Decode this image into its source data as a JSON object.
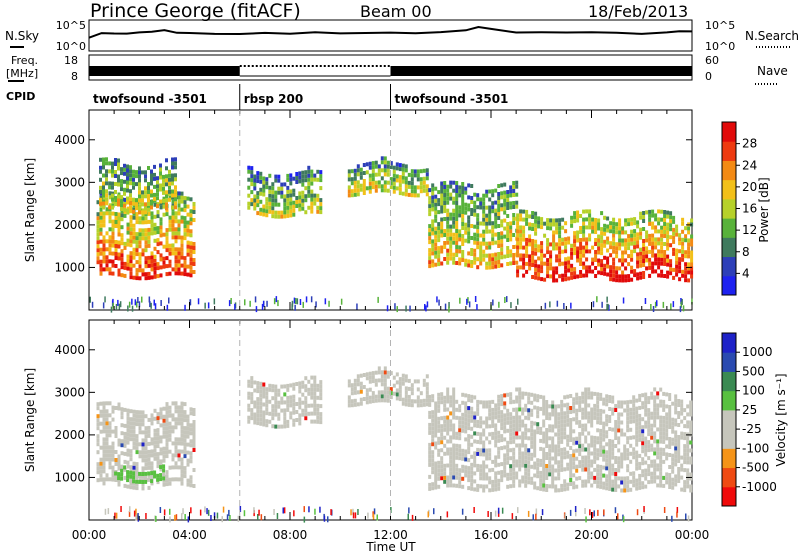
{
  "header": {
    "station": "Prince George (fitACF)",
    "beam": "Beam 00",
    "date": "18/Feb/2013"
  },
  "labels": {
    "nsky": "N.Sky",
    "nsearch": "N.Search",
    "freq": "Freq.",
    "freq_unit": "[MHz]",
    "nave": "Nave",
    "cpid": "CPID",
    "xlabel": "Time UT"
  },
  "colors": {
    "power_scale": [
      "#1e22f0",
      "#2d3fb8",
      "#3f7a5e",
      "#58b23a",
      "#b6d12a",
      "#f2c019",
      "#f38a14",
      "#ee3a10",
      "#e10a0a"
    ],
    "velocity_scale": [
      "#f00a0a",
      "#ef4a12",
      "#f59418",
      "#c6c6bc",
      "#c6c6bc",
      "#58c040",
      "#3a8a52",
      "#2a4ab0",
      "#1e22c8"
    ],
    "gridline": "#b4b4b4"
  },
  "chart_data": [
    {
      "type": "line",
      "name": "N.Sky / N.Search",
      "y_left_ticks": [
        "10^5",
        "10^0"
      ],
      "y_right_ticks": [
        "10^5",
        "10^0"
      ],
      "x_range_hours": [
        0,
        24
      ],
      "x_hours": [
        0,
        0.5,
        1,
        1.5,
        2,
        2.5,
        3,
        3.5,
        4,
        5,
        6,
        7,
        8,
        9,
        10,
        11,
        12,
        13,
        14,
        15,
        15.5,
        16,
        17,
        18,
        19,
        20,
        21,
        22,
        23,
        23.5,
        24
      ],
      "values": [
        0.42,
        0.55,
        0.56,
        0.58,
        0.6,
        0.62,
        0.64,
        0.6,
        0.58,
        0.56,
        0.55,
        0.56,
        0.56,
        0.57,
        0.56,
        0.55,
        0.56,
        0.58,
        0.62,
        0.68,
        0.74,
        0.7,
        0.6,
        0.58,
        0.57,
        0.58,
        0.6,
        0.56,
        0.58,
        0.62,
        0.64
      ],
      "dotted_legend": "N.Search"
    },
    {
      "type": "bar",
      "name": "Freq / Nave",
      "y_left_ticks": [
        "18",
        "8"
      ],
      "y_right_ticks": [
        "60",
        "0"
      ],
      "segments": [
        {
          "start_hour": 0,
          "end_hour": 6,
          "style": "solid"
        },
        {
          "start_hour": 6,
          "end_hour": 12,
          "style": "dotted"
        },
        {
          "start_hour": 12,
          "end_hour": 24,
          "style": "solid"
        }
      ],
      "dotted_legend": "Nave"
    },
    {
      "type": "table",
      "name": "CPID",
      "programs": [
        {
          "label": "twofsound -3501",
          "start_hour": 0
        },
        {
          "label": "rbsp 200",
          "start_hour": 6
        },
        {
          "label": "twofsound -3501",
          "start_hour": 12
        }
      ]
    },
    {
      "type": "heatmap",
      "name": "Power",
      "ylabel": "Slant Range [km]",
      "yticks": [
        1000,
        2000,
        3000,
        4000
      ],
      "ylim": [
        0,
        4700
      ],
      "colorbar_label": "Power [dB]",
      "colorbar_ticks": [
        4,
        8,
        12,
        16,
        20,
        24,
        28
      ],
      "colorbar_range": [
        0,
        32
      ],
      "x_range_hours": [
        0,
        24
      ],
      "echo_regions": [
        {
          "t0": 0.3,
          "t1": 4.2,
          "r_low": 850,
          "r_high": 2700,
          "level": 0.72
        },
        {
          "t0": 0.4,
          "t1": 3.5,
          "r_low": 2400,
          "r_high": 3500,
          "level": 0.5
        },
        {
          "t0": 6.3,
          "t1": 9.2,
          "r_low": 2300,
          "r_high": 3300,
          "level": 0.45
        },
        {
          "t0": 10.3,
          "t1": 13.5,
          "r_low": 2800,
          "r_high": 3500,
          "level": 0.5
        },
        {
          "t0": 13.5,
          "t1": 17.0,
          "r_low": 1100,
          "r_high": 3000,
          "level": 0.55
        },
        {
          "t0": 17.0,
          "t1": 24.0,
          "r_low": 800,
          "r_high": 2300,
          "level": 0.8
        }
      ]
    },
    {
      "type": "heatmap",
      "name": "Velocity",
      "ylabel": "Slant Range [km]",
      "yticks": [
        1000,
        2000,
        3000,
        4000
      ],
      "ylim": [
        0,
        4700
      ],
      "colorbar_label": "Velocity [m s⁻¹]",
      "colorbar_ticks": [
        1000,
        500,
        100,
        25,
        -25,
        -100,
        -500,
        -1000
      ],
      "x_range_hours": [
        0,
        24
      ],
      "xticks": [
        "00:00",
        "04:00",
        "08:00",
        "12:00",
        "16:00",
        "20:00",
        "00:00"
      ],
      "echo_regions": [
        {
          "t0": 0.3,
          "t1": 4.2,
          "r_low": 850,
          "r_high": 2700,
          "mean_velocity": 0
        },
        {
          "t0": 1.0,
          "t1": 3.0,
          "r_low": 1000,
          "r_high": 1300,
          "mean_velocity": 80
        },
        {
          "t0": 6.3,
          "t1": 9.2,
          "r_low": 2300,
          "r_high": 3300,
          "mean_velocity": 0
        },
        {
          "t0": 10.3,
          "t1": 13.5,
          "r_low": 2800,
          "r_high": 3500,
          "mean_velocity": 0
        },
        {
          "t0": 13.5,
          "t1": 24.0,
          "r_low": 800,
          "r_high": 3000,
          "mean_velocity": 0
        }
      ]
    }
  ]
}
